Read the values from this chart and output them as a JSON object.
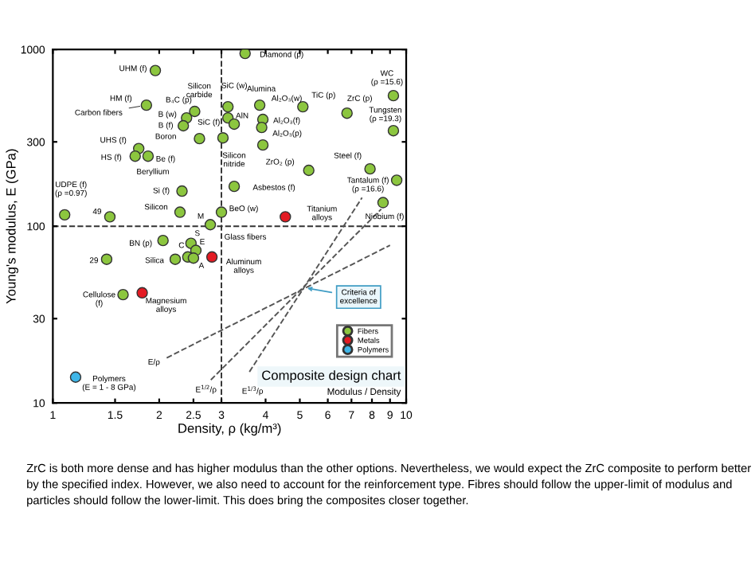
{
  "chart_data": {
    "type": "scatter",
    "xlabel": "Density, ρ (kg/m³)",
    "ylabel": "Young's modulus, E (GPa)",
    "log": "xy",
    "xlim": [
      1,
      10
    ],
    "ylim": [
      10,
      1000
    ],
    "xticks": [
      1,
      1.5,
      2,
      2.5,
      3,
      4,
      5,
      6,
      7,
      8,
      9,
      10
    ],
    "yticks": [
      10,
      30,
      100,
      300,
      1000
    ],
    "grid": false,
    "marker": "circle",
    "legend": "bottom right",
    "series": [
      {
        "name": "Fibers",
        "color": "#8cc63f",
        "x": [
          3.5,
          1.95,
          1.84,
          2.52,
          2.39,
          2.34,
          1.75,
          1.71,
          1.86,
          3.13,
          3.13,
          2.6,
          3.26,
          3.03,
          3.85,
          3.93,
          3.9,
          3.93,
          5.1,
          6.8,
          9.2,
          9.2,
          5.3,
          7.9,
          9.4,
          8.6,
          3.26,
          2.32,
          2.29,
          1.08,
          1.45,
          3.0,
          2.79,
          2.46,
          2.54,
          2.41,
          2.5,
          2.05,
          2.22,
          1.42,
          1.58
        ],
        "values": [
          950,
          760,
          484,
          446,
          410,
          370,
          275,
          249,
          249,
          474,
          410,
          313,
          378,
          316,
          484,
          402,
          362,
          288,
          474,
          436,
          548,
          347,
          207,
          211,
          182,
          136,
          168,
          158,
          120,
          116,
          113,
          120,
          102,
          80,
          73,
          67,
          66,
          83,
          65,
          65,
          41
        ]
      },
      {
        "name": "Metals",
        "color": "#e31b23",
        "x": [
          4.55,
          2.82,
          1.79
        ],
        "values": [
          113,
          67,
          42
        ]
      },
      {
        "name": "Polymers",
        "color": "#3fb6e8",
        "x": [
          1.16
        ],
        "values": [
          14
        ]
      },
      {
        "type": "line",
        "marker": "none",
        "color": "#555555",
        "line_style": "dashed",
        "x": [
          2.1,
          9.0
        ],
        "values": [
          18,
          78
        ]
      },
      {
        "type": "line",
        "marker": "none",
        "color": "#555555",
        "line_style": "dashed",
        "x": [
          2.8,
          8.5
        ],
        "values": [
          13.5,
          125
        ]
      },
      {
        "type": "line",
        "marker": "none",
        "color": "#555555",
        "line_style": "dashed",
        "x": [
          3.6,
          7.5
        ],
        "values": [
          15,
          145
        ]
      }
    ],
    "ref_lines": [
      {
        "axis": "y",
        "value": 100,
        "color": "#333333",
        "line_style": "dashed"
      },
      {
        "axis": "x",
        "value": 3,
        "color": "#333333",
        "line_style": "dashed"
      }
    ],
    "annotations": [
      {
        "text": "Diamond (p)",
        "x": 3.5,
        "y": 950
      },
      {
        "text": "UHM (f)",
        "x": 1.95,
        "y": 760
      },
      {
        "text": "HM (f)",
        "x": 1.84,
        "y": 484
      },
      {
        "text": "Carbon fibers",
        "x": 1.84,
        "y": 484
      },
      {
        "text": "B₄C (p)",
        "x": 2.52,
        "y": 446
      },
      {
        "text": "B (w)",
        "x": 2.39,
        "y": 410
      },
      {
        "text": "B (f)",
        "x": 2.34,
        "y": 370
      },
      {
        "text": "Boron",
        "x": 2.34,
        "y": 370
      },
      {
        "text": "UHS (f)",
        "x": 1.75,
        "y": 275
      },
      {
        "text": "HS (f)",
        "x": 1.71,
        "y": 249
      },
      {
        "text": "Be (f)",
        "x": 1.86,
        "y": 249
      },
      {
        "text": "Beryllium",
        "x": 1.86,
        "y": 249
      },
      {
        "text": "Silicon\ncarbide",
        "x": 3.13,
        "y": 474
      },
      {
        "text": "SiC (w)",
        "x": 3.13,
        "y": 474
      },
      {
        "text": "SiC (f)",
        "x": 3.13,
        "y": 410
      },
      {
        "text": "AlN",
        "x": 3.26,
        "y": 378
      },
      {
        "text": "Silicon\nnitride",
        "x": 3.03,
        "y": 316
      },
      {
        "text": "Alumina",
        "x": 3.85,
        "y": 484
      },
      {
        "text": "Al₂O₃(w)",
        "x": 3.85,
        "y": 484
      },
      {
        "text": "Al₂O₃(f)",
        "x": 3.93,
        "y": 402
      },
      {
        "text": "Al₂O₃(p)",
        "x": 3.9,
        "y": 362
      },
      {
        "text": "TiC (p)",
        "x": 5.1,
        "y": 474
      },
      {
        "text": "ZrC (p)",
        "x": 6.8,
        "y": 436
      },
      {
        "text": "WC\n(ρ =15.6)",
        "x": 9.2,
        "y": 548
      },
      {
        "text": "Tungsten\n(ρ =19.3)",
        "x": 9.2,
        "y": 347
      },
      {
        "text": "ZrO₂ (p)",
        "x": 5.3,
        "y": 207
      },
      {
        "text": "Steel (f)",
        "x": 7.9,
        "y": 211
      },
      {
        "text": "Tantalum (f)\n(ρ =16.6)",
        "x": 9.4,
        "y": 182
      },
      {
        "text": "Niobium (f)",
        "x": 8.6,
        "y": 136
      },
      {
        "text": "Asbestos (f)",
        "x": 3.26,
        "y": 168
      },
      {
        "text": "Si (f)",
        "x": 2.32,
        "y": 158
      },
      {
        "text": "Silicon",
        "x": 2.29,
        "y": 120
      },
      {
        "text": "UDPE (f)\n(ρ =0.97)",
        "x": 1.08,
        "y": 116
      },
      {
        "text": "49",
        "x": 1.45,
        "y": 113
      },
      {
        "text": "BeO (w)",
        "x": 3.0,
        "y": 120
      },
      {
        "text": "Titanium\nalloys",
        "x": 4.55,
        "y": 113
      },
      {
        "text": "M",
        "x": 2.79,
        "y": 102
      },
      {
        "text": "Glass fibers",
        "x": 2.79,
        "y": 102
      },
      {
        "text": "S",
        "x": 2.46,
        "y": 80
      },
      {
        "text": "E",
        "x": 2.54,
        "y": 73
      },
      {
        "text": "C",
        "x": 2.41,
        "y": 67
      },
      {
        "text": "A",
        "x": 2.5,
        "y": 66
      },
      {
        "text": "BN (p)",
        "x": 2.05,
        "y": 83
      },
      {
        "text": "Silica",
        "x": 2.22,
        "y": 65
      },
      {
        "text": "Aluminum\nalloys",
        "x": 2.82,
        "y": 67
      },
      {
        "text": "29",
        "x": 1.42,
        "y": 65
      },
      {
        "text": "Cellulose\n(f)",
        "x": 1.58,
        "y": 41
      },
      {
        "text": "Magnesium\nalloys",
        "x": 1.79,
        "y": 42
      },
      {
        "text": "Polymers\n(E = 1 - 8 GPa)",
        "x": 1.16,
        "y": 14
      },
      {
        "text": "E/ρ",
        "x": 2.1,
        "y": 18
      },
      {
        "text": "E$^{1/2}$/ρ",
        "x": 2.8,
        "y": 13.5
      },
      {
        "text": "E$^{1/3}$/ρ",
        "x": 3.6,
        "y": 15
      },
      {
        "text": "Criteria of\nexcellence",
        "x": 5.1,
        "y": 45
      },
      "Composite design chart",
      "Modulus / Density",
      "ZrC is both more dense and has higher modulus than the other options. Nevertheless, we would expect the ZrC composite to perform better by the specified index. However, we also need to account for the reinforcement type. Fibres should follow the upper-limit of modulus and particles should follow the lower-limit. This does bring the composites closer together."
    ]
  }
}
